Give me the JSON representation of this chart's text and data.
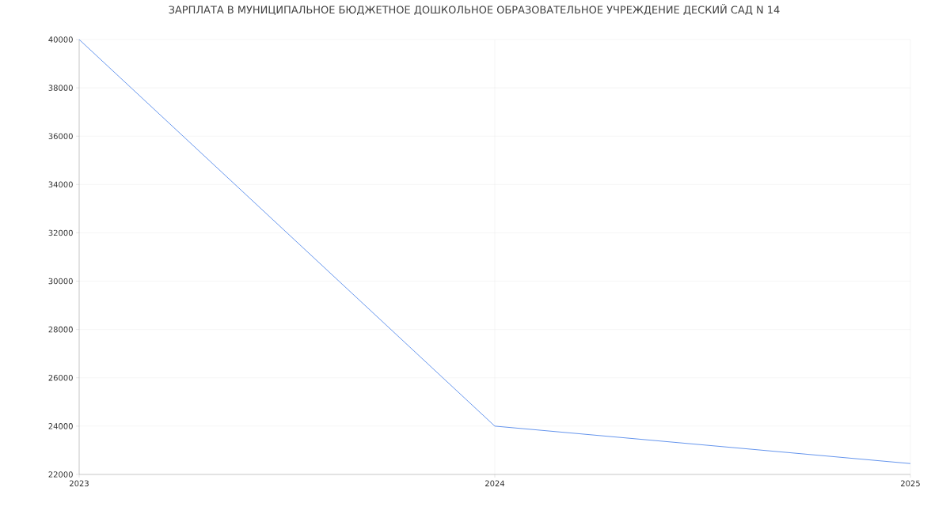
{
  "chart_data": {
    "type": "line",
    "title": "ЗАРПЛАТА В МУНИЦИПАЛЬНОЕ БЮДЖЕТНОЕ ДОШКОЛЬНОЕ ОБРАЗОВАТЕЛЬНОЕ УЧРЕЖДЕНИЕ ДЕСКИЙ САД N 14",
    "x": [
      "2023",
      "2024",
      "2025"
    ],
    "series": [
      {
        "color": "#6495ed",
        "values": [
          40000,
          24000,
          22450
        ]
      }
    ],
    "xlim": [
      "2023",
      "2025"
    ],
    "xticks": [
      "2023",
      "2024",
      "2025"
    ],
    "ylim": [
      22000,
      40000
    ],
    "yticks": [
      22000,
      24000,
      26000,
      28000,
      30000,
      32000,
      34000,
      36000,
      38000,
      40000
    ],
    "grid": true,
    "marker": "none",
    "line_style": "solid"
  }
}
